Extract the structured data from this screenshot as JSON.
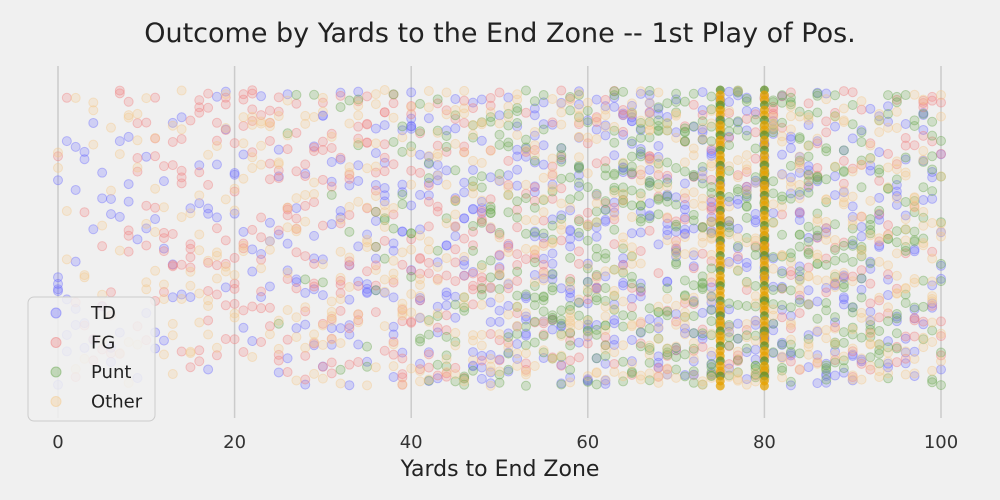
{
  "chart_data": {
    "type": "scatter",
    "title": "Outcome by Yards to the End Zone -- 1st Play of Pos.",
    "xlabel": "Yards to End Zone",
    "ylabel": "",
    "xlim": [
      -1,
      100
    ],
    "xticks": [
      0,
      20,
      40,
      60,
      80,
      100
    ],
    "tick_labels": [
      "0",
      "20",
      "40",
      "60",
      "80",
      "100"
    ],
    "grid": true,
    "legend_position": "lower-left",
    "point_opacity": 0.25,
    "dense_columns": [
      75,
      80
    ],
    "series": [
      {
        "name": "TD",
        "color": "#6b6bff",
        "density": [
          6,
          4,
          5,
          4,
          3,
          3,
          4,
          3,
          3,
          2,
          3,
          3,
          3,
          3,
          2,
          2,
          2,
          3,
          3,
          3,
          3,
          3,
          3,
          3,
          3,
          4,
          4,
          4,
          4,
          5,
          5,
          5,
          5,
          6,
          6,
          6,
          6,
          6,
          6,
          6,
          7,
          7,
          7,
          7,
          7,
          7,
          7,
          8,
          8,
          8,
          8,
          8,
          8,
          8,
          9,
          9,
          9,
          9,
          9,
          9,
          10,
          10,
          10,
          10,
          10,
          10,
          10,
          10,
          10,
          10,
          10,
          10,
          10,
          10,
          14,
          10,
          10,
          10,
          10,
          10,
          16,
          9,
          9,
          9,
          9,
          9,
          8,
          8,
          8,
          8,
          8,
          7,
          7,
          7,
          7,
          6,
          6,
          6,
          6,
          6,
          5
        ]
      },
      {
        "name": "FG",
        "color": "#f08080",
        "density": [
          1,
          1,
          2,
          2,
          2,
          3,
          3,
          3,
          4,
          4,
          4,
          5,
          5,
          5,
          6,
          6,
          6,
          6,
          6,
          7,
          7,
          7,
          7,
          7,
          7,
          7,
          7,
          7,
          7,
          7,
          7,
          7,
          7,
          7,
          7,
          7,
          7,
          7,
          7,
          7,
          7,
          7,
          7,
          7,
          7,
          7,
          7,
          7,
          7,
          7,
          6,
          6,
          6,
          6,
          6,
          6,
          6,
          5,
          5,
          5,
          5,
          5,
          5,
          5,
          5,
          5,
          5,
          5,
          5,
          5,
          5,
          5,
          5,
          5,
          10,
          5,
          5,
          5,
          5,
          5,
          12,
          5,
          5,
          5,
          5,
          5,
          5,
          5,
          5,
          5,
          5,
          5,
          5,
          5,
          5,
          5,
          5,
          5,
          5,
          5,
          5
        ]
      },
      {
        "name": "Punt",
        "color": "#6aa84f",
        "density": [
          0,
          0,
          0,
          0,
          0,
          0,
          0,
          0,
          0,
          0,
          0,
          0,
          0,
          0,
          0,
          0,
          0,
          0,
          0,
          0,
          0,
          0,
          0,
          0,
          0,
          1,
          1,
          1,
          1,
          1,
          1,
          1,
          2,
          2,
          2,
          2,
          3,
          3,
          3,
          4,
          4,
          4,
          5,
          5,
          6,
          6,
          6,
          7,
          7,
          8,
          8,
          9,
          9,
          9,
          10,
          10,
          10,
          11,
          11,
          11,
          12,
          12,
          12,
          12,
          13,
          13,
          13,
          13,
          13,
          13,
          13,
          13,
          13,
          13,
          18,
          13,
          13,
          13,
          13,
          13,
          20,
          13,
          13,
          12,
          12,
          12,
          12,
          11,
          11,
          11,
          10,
          10,
          10,
          9,
          9,
          9,
          8,
          8,
          8,
          8,
          7
        ]
      },
      {
        "name": "Other",
        "color": "#f5c98a",
        "density": [
          2,
          2,
          2,
          3,
          3,
          3,
          3,
          3,
          4,
          4,
          4,
          4,
          4,
          4,
          4,
          5,
          5,
          5,
          5,
          5,
          5,
          5,
          5,
          5,
          5,
          5,
          6,
          6,
          6,
          6,
          6,
          6,
          6,
          6,
          6,
          6,
          7,
          7,
          7,
          7,
          7,
          7,
          7,
          7,
          7,
          8,
          8,
          8,
          8,
          8,
          8,
          8,
          8,
          8,
          8,
          8,
          8,
          8,
          9,
          9,
          9,
          9,
          9,
          9,
          9,
          9,
          9,
          9,
          9,
          9,
          9,
          9,
          9,
          9,
          14,
          9,
          9,
          9,
          9,
          9,
          16,
          9,
          9,
          9,
          9,
          9,
          9,
          9,
          9,
          9,
          9,
          9,
          9,
          9,
          9,
          9,
          9,
          9,
          9,
          9,
          8
        ]
      }
    ]
  }
}
